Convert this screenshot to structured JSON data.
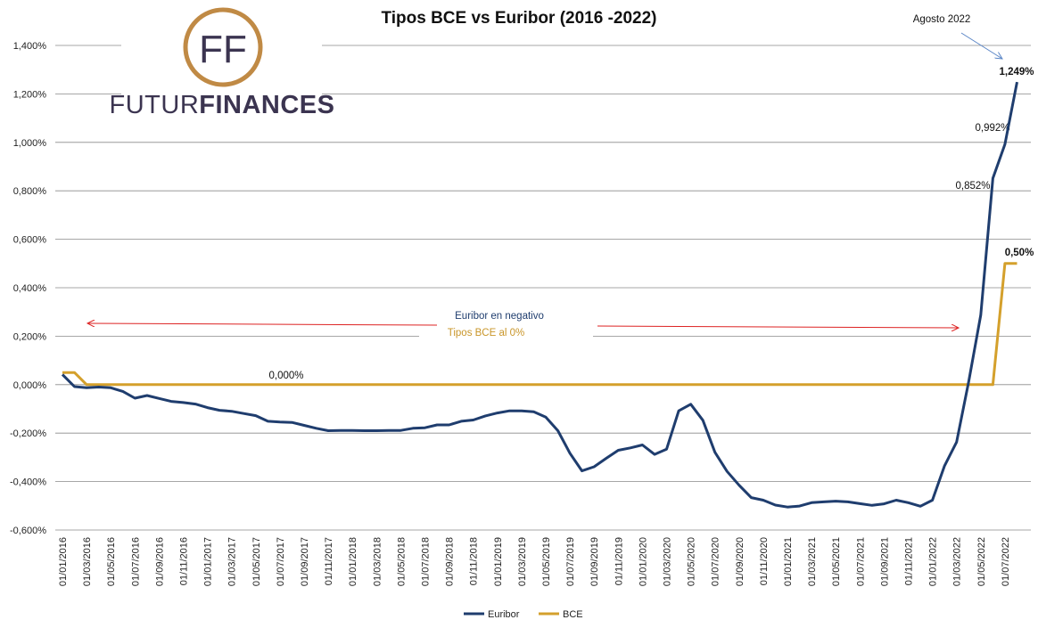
{
  "logo": {
    "monogram": "FF",
    "text_part1": "FUTUR",
    "text_part2": "FINANCES",
    "ring_color": "#c08a45",
    "text_color": "#3b3450"
  },
  "chart_data": {
    "type": "line",
    "title": "Tipos BCE vs Euribor (2016 -2022)",
    "xlabel": "",
    "ylabel": "",
    "ylim": [
      -0.6,
      1.4
    ],
    "yticks": [
      -0.6,
      -0.4,
      -0.2,
      0.0,
      0.2,
      0.4,
      0.6,
      0.8,
      1.0,
      1.2,
      1.4
    ],
    "ytick_labels": [
      "-0,600%",
      "-0,400%",
      "-0,200%",
      "0,000%",
      "0,200%",
      "0,400%",
      "0,600%",
      "0,800%",
      "1,000%",
      "1,200%",
      "1,400%"
    ],
    "x_tick_labels": [
      "01/01/2016",
      "01/03/2016",
      "01/05/2016",
      "01/07/2016",
      "01/09/2016",
      "01/11/2016",
      "01/01/2017",
      "01/03/2017",
      "01/05/2017",
      "01/07/2017",
      "01/09/2017",
      "01/11/2017",
      "01/01/2018",
      "01/03/2018",
      "01/05/2018",
      "01/07/2018",
      "01/09/2018",
      "01/11/2018",
      "01/01/2019",
      "01/03/2019",
      "01/05/2019",
      "01/07/2019",
      "01/09/2019",
      "01/11/2019",
      "01/01/2020",
      "01/03/2020",
      "01/05/2020",
      "01/07/2020",
      "01/09/2020",
      "01/11/2020",
      "01/01/2021",
      "01/03/2021",
      "01/05/2021",
      "01/07/2021",
      "01/09/2021",
      "01/11/2021",
      "01/01/2022",
      "01/03/2022",
      "01/05/2022",
      "01/07/2022"
    ],
    "grid": true,
    "legend_position": "bottom-center",
    "series": [
      {
        "name": "Euribor",
        "color": "#1f3d6e",
        "values": [
          0.042,
          -0.008,
          -0.013,
          -0.01,
          -0.013,
          -0.028,
          -0.056,
          -0.045,
          -0.057,
          -0.069,
          -0.074,
          -0.08,
          -0.095,
          -0.106,
          -0.11,
          -0.119,
          -0.128,
          -0.151,
          -0.154,
          -0.156,
          -0.168,
          -0.18,
          -0.19,
          -0.189,
          -0.189,
          -0.19,
          -0.19,
          -0.189,
          -0.189,
          -0.18,
          -0.178,
          -0.166,
          -0.166,
          -0.151,
          -0.146,
          -0.129,
          -0.117,
          -0.108,
          -0.108,
          -0.112,
          -0.134,
          -0.19,
          -0.283,
          -0.356,
          -0.339,
          -0.304,
          -0.271,
          -0.261,
          -0.249,
          -0.288,
          -0.266,
          -0.108,
          -0.081,
          -0.147,
          -0.279,
          -0.358,
          -0.415,
          -0.466,
          -0.477,
          -0.497,
          -0.505,
          -0.501,
          -0.487,
          -0.484,
          -0.481,
          -0.484,
          -0.491,
          -0.498,
          -0.492,
          -0.477,
          -0.487,
          -0.502,
          -0.477,
          -0.335,
          -0.237,
          0.013,
          0.287,
          0.852,
          0.992,
          1.249
        ]
      },
      {
        "name": "BCE",
        "color": "#d4a02c",
        "values": [
          0.05,
          0.05,
          0.0,
          0.0,
          0.0,
          0.0,
          0.0,
          0.0,
          0.0,
          0.0,
          0.0,
          0.0,
          0.0,
          0.0,
          0.0,
          0.0,
          0.0,
          0.0,
          0.0,
          0.0,
          0.0,
          0.0,
          0.0,
          0.0,
          0.0,
          0.0,
          0.0,
          0.0,
          0.0,
          0.0,
          0.0,
          0.0,
          0.0,
          0.0,
          0.0,
          0.0,
          0.0,
          0.0,
          0.0,
          0.0,
          0.0,
          0.0,
          0.0,
          0.0,
          0.0,
          0.0,
          0.0,
          0.0,
          0.0,
          0.0,
          0.0,
          0.0,
          0.0,
          0.0,
          0.0,
          0.0,
          0.0,
          0.0,
          0.0,
          0.0,
          0.0,
          0.0,
          0.0,
          0.0,
          0.0,
          0.0,
          0.0,
          0.0,
          0.0,
          0.0,
          0.0,
          0.0,
          0.0,
          0.0,
          0.0,
          0.0,
          0.0,
          0.0,
          0.5,
          0.5
        ]
      }
    ],
    "annotations": [
      {
        "id": "agosto",
        "text": "Agosto 2022",
        "bold": false
      },
      {
        "id": "v1249",
        "text": "1,249%",
        "bold": true
      },
      {
        "id": "v0992",
        "text": "0,992%",
        "bold": false
      },
      {
        "id": "v0852",
        "text": "0,852%",
        "bold": false
      },
      {
        "id": "v050",
        "text": "0,50%",
        "bold": true
      },
      {
        "id": "v0000",
        "text": "0,000%",
        "bold": false
      },
      {
        "id": "neg",
        "text": "Euribor en negativo",
        "bold": false
      },
      {
        "id": "bce0",
        "text": "Tipos BCE al 0%",
        "bold": false
      }
    ]
  }
}
